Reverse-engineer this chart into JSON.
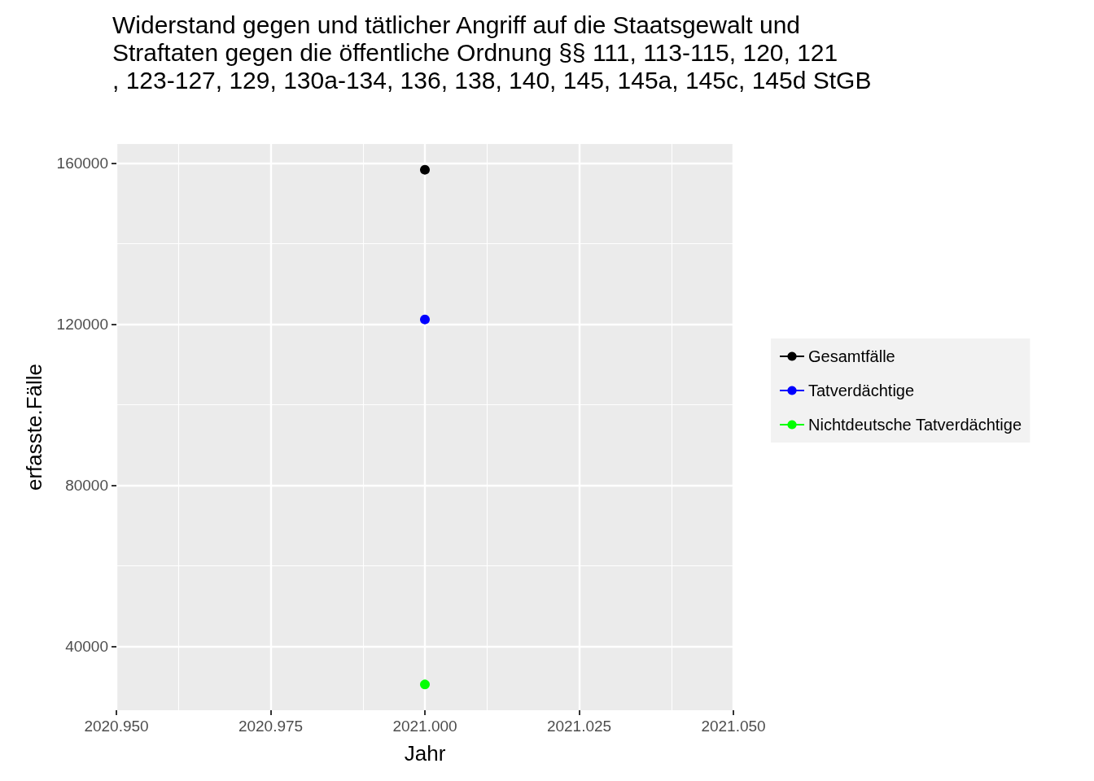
{
  "chart_data": {
    "type": "line",
    "title": "Widerstand gegen und tätlicher Angriff auf die Staatsgewalt und Straftaten gegen die öffentliche Ordnung §§ 111, 113-115, 120, 121, 123-127, 129, 130a-134, 136, 138, 140, 145, 145a, 145c, 145d StGB",
    "xlabel": "Jahr",
    "ylabel": "erfasste.Fälle",
    "x": [
      2021
    ],
    "series": [
      {
        "name": "Gesamtfälle",
        "color": "#000000",
        "values": [
          158400
        ]
      },
      {
        "name": "Tatverdächtige",
        "color": "#0000ff",
        "values": [
          121200
        ]
      },
      {
        "name": "Nichtdeutsche Tatverdächtige",
        "color": "#00ff00",
        "values": [
          30500
        ]
      }
    ],
    "xlim": [
      2020.95,
      2021.05
    ],
    "xticks": [
      {
        "value": 2020.95,
        "label": "2020.950"
      },
      {
        "value": 2020.975,
        "label": "2020.975"
      },
      {
        "value": 2021,
        "label": "2021.000"
      },
      {
        "value": 2021.025,
        "label": "2021.025"
      },
      {
        "value": 2021.05,
        "label": "2021.050"
      }
    ],
    "ylim": [
      24100,
      164800
    ],
    "yticks": [
      40000,
      80000,
      120000,
      160000
    ],
    "grid": true,
    "legend": "right",
    "marker": "circle",
    "line_style": "solid"
  }
}
